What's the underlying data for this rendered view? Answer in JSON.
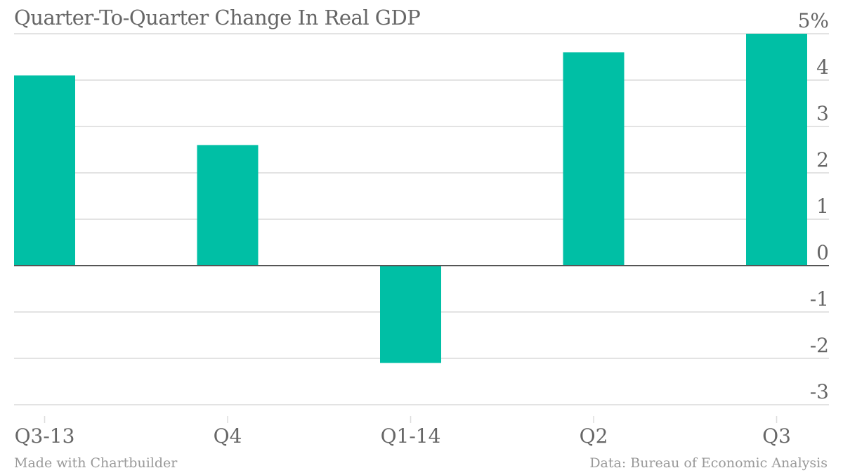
{
  "chart_data": {
    "type": "bar",
    "title": "Quarter-To-Quarter Change In Real GDP",
    "categories": [
      "Q3-13",
      "Q4",
      "Q1-14",
      "Q2",
      "Q3"
    ],
    "values": [
      4.1,
      2.6,
      -2.1,
      4.6,
      5.0
    ],
    "xlabel": "",
    "ylabel": "",
    "ylim": [
      -3,
      5
    ],
    "yticks": [
      5,
      4,
      3,
      2,
      1,
      0,
      -1,
      -2,
      -3
    ],
    "ytick_labels": [
      "5%",
      "4",
      "3",
      "2",
      "1",
      "0",
      "-1",
      "-2",
      "-3"
    ],
    "y_axis_side": "right",
    "grid": true,
    "legend": "none",
    "bar_color": "#00bfa5",
    "source": "Data: Bureau of Economic Analysis",
    "credit": "Made with Chartbuilder"
  }
}
